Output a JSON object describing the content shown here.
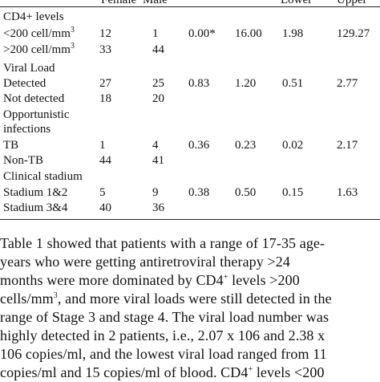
{
  "table": {
    "headers": {
      "female": "Female",
      "male": "Male",
      "lower": "Lower",
      "upper": "Upper"
    },
    "rows": [
      {
        "label": "CD4+ levels",
        "is_group": true
      },
      {
        "label": "<200 cell/mm",
        "sup": "3",
        "female": "12",
        "male": "1",
        "p": "0.00*",
        "or": "16.00",
        "lower": "1.98",
        "upper": "129.27"
      },
      {
        "label": ">200 cell/mm",
        "sup": "3",
        "female": "33",
        "male": "44"
      },
      {
        "label": "Viral Load",
        "is_group": true
      },
      {
        "label": "Detected",
        "female": "27",
        "male": "25",
        "p": "0.83",
        "or": "1.20",
        "lower": "0.51",
        "upper": "2.77"
      },
      {
        "label": "Not detected",
        "female": "18",
        "male": "20"
      },
      {
        "label": "Opportunistic",
        "is_group": true
      },
      {
        "label": "infections",
        "is_group": true
      },
      {
        "label": "TB",
        "female": "1",
        "male": "4",
        "p": "0.36",
        "or": "0.23",
        "lower": "0.02",
        "upper": "2.17"
      },
      {
        "label": "Non-TB",
        "female": "44",
        "male": "41"
      },
      {
        "label": "Clinical stadium",
        "is_group": true
      },
      {
        "label": "Stadium 1&2",
        "female": "5",
        "male": "9",
        "p": "0.38",
        "or": "0.50",
        "lower": "0.15",
        "upper": "1.63"
      },
      {
        "label": "Stadium 3&4",
        "female": "40",
        "male": "36"
      }
    ]
  },
  "paragraph": {
    "lines": [
      [
        "Table 1 showed that patients with a range of 17-35 age-"
      ],
      [
        "years who were getting antiretroviral therapy >24"
      ],
      [
        "months were more dominated by CD4",
        {
          "sup": "+"
        },
        " levels >200"
      ],
      [
        "cells/mm",
        {
          "sup": "3"
        },
        ", and more viral loads were still detected in the"
      ],
      [
        "range of Stage 3 and stage 4. The viral load number was"
      ],
      [
        "highly detected in 2 patients, i.e., 2.07 x 106 and 2.38 x"
      ],
      [
        "106 copies/ml, and the lowest viral load ranged from 11"
      ],
      [
        "copies/ml and 15 copies/ml of blood. CD4",
        {
          "sup": "+"
        },
        " levels <200"
      ]
    ]
  }
}
